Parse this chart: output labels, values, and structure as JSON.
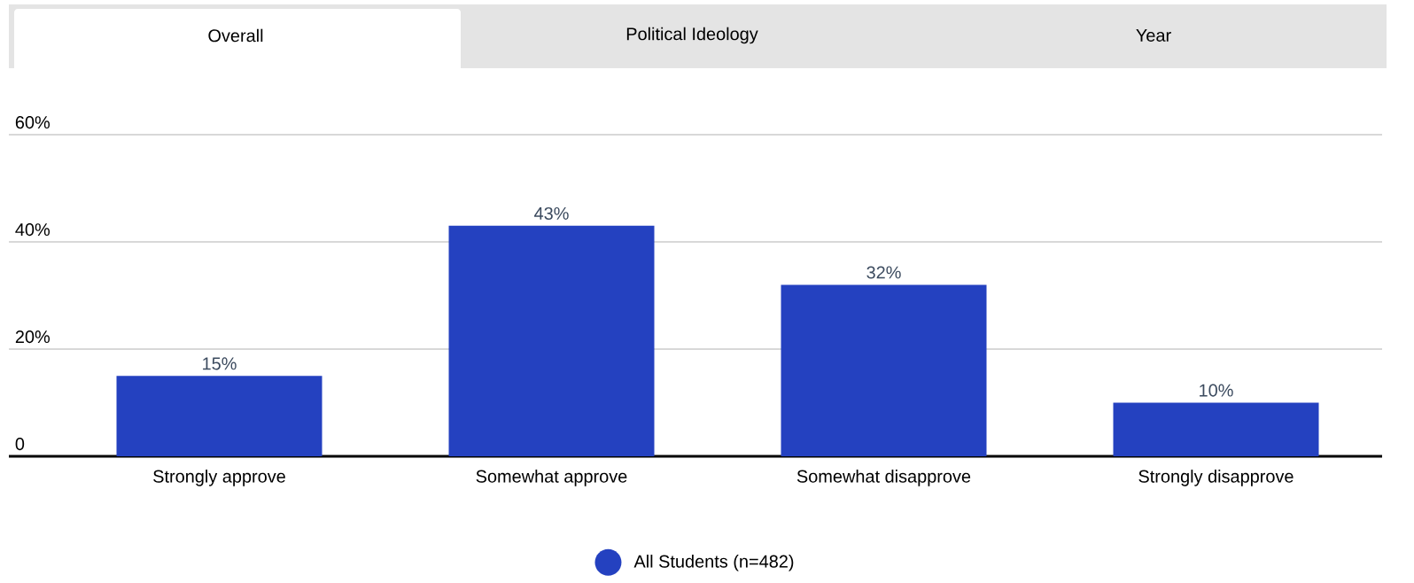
{
  "chart_data": {
    "type": "bar",
    "annotations": [
      "Overall",
      "Political Ideology",
      "Year"
    ],
    "categories": [
      "Strongly approve",
      "Somewhat approve",
      "Somewhat disapprove",
      "Strongly disapprove"
    ],
    "series": [
      {
        "name": "All Students (n=482)",
        "color": "#2441c0",
        "values": [
          15,
          43,
          32,
          10
        ],
        "value_labels": [
          "15%",
          "43%",
          "32%",
          "10%"
        ]
      }
    ],
    "ylim": [
      0,
      60
    ],
    "yticks": [
      {
        "value": 0,
        "label": "0"
      },
      {
        "value": 20,
        "label": "20%"
      },
      {
        "value": 40,
        "label": "40%"
      },
      {
        "value": 60,
        "label": "60%"
      }
    ],
    "grid": "y",
    "legend": "bottom"
  }
}
